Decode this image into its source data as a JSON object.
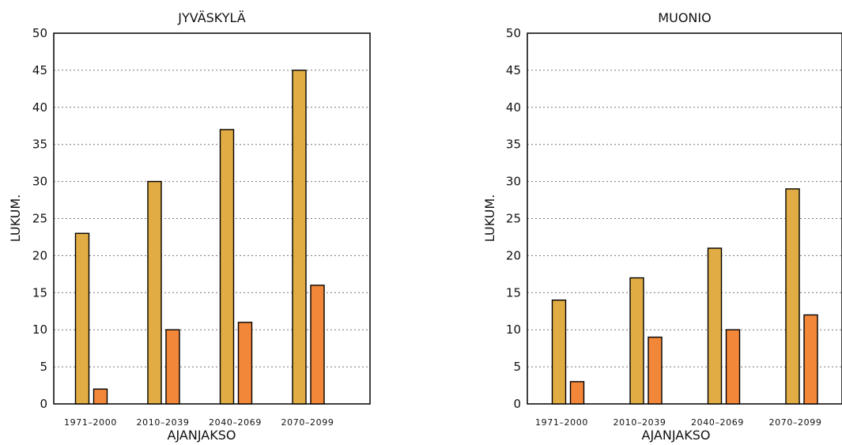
{
  "colors": {
    "series_a": "#E0AC43",
    "series_b": "#F2873A",
    "diaeresis_accent": "#E0301E"
  },
  "chart_data": [
    {
      "type": "bar",
      "title": "JYVÄSKYLÄ",
      "xlabel": "AJANJAKSO",
      "ylabel": "LUKUM.",
      "ylim": [
        0,
        50
      ],
      "yticks": [
        0,
        5,
        10,
        15,
        20,
        25,
        30,
        35,
        40,
        45,
        50
      ],
      "grid": true,
      "legend": "none",
      "categories": [
        "1971–2000",
        "2010–2039",
        "2040–2069",
        "2070–2099"
      ],
      "series": [
        {
          "values": [
            23,
            30,
            37,
            45
          ]
        },
        {
          "values": [
            2,
            10,
            11,
            16
          ]
        }
      ]
    },
    {
      "type": "bar",
      "title": "MUONIO",
      "xlabel": "AJANJAKSO",
      "ylabel": "LUKUM.",
      "ylim": [
        0,
        50
      ],
      "yticks": [
        0,
        5,
        10,
        15,
        20,
        25,
        30,
        35,
        40,
        45,
        50
      ],
      "grid": true,
      "legend": "none",
      "categories": [
        "1971–2000",
        "2010–2039",
        "2040–2069",
        "2070–2099"
      ],
      "series": [
        {
          "values": [
            14,
            17,
            21,
            29
          ]
        },
        {
          "values": [
            3,
            9,
            10,
            12
          ]
        }
      ]
    }
  ]
}
